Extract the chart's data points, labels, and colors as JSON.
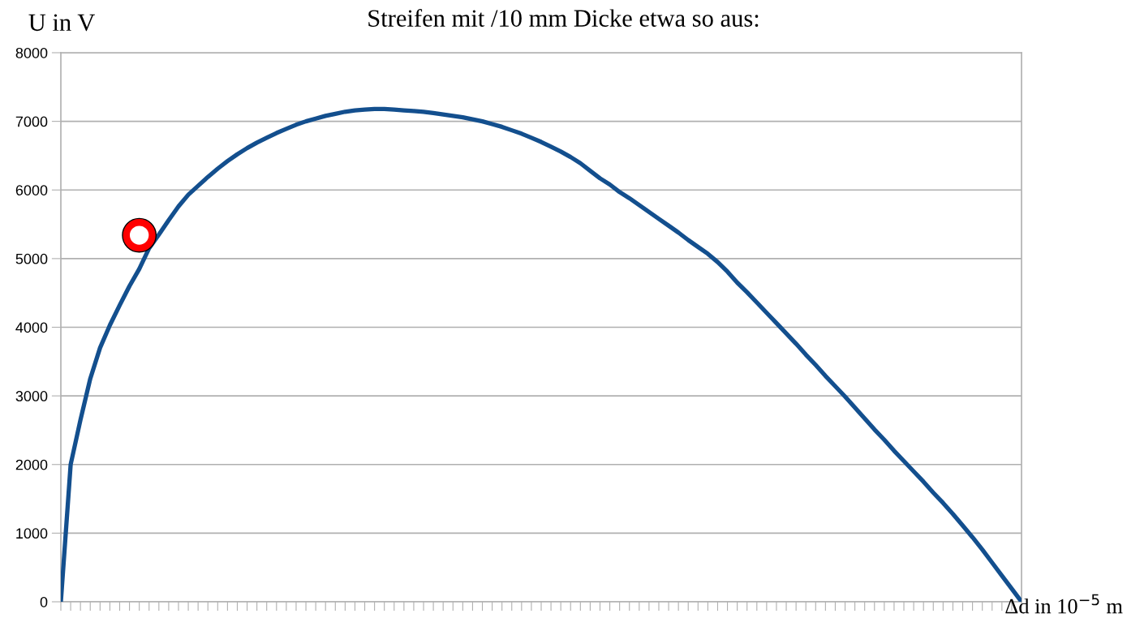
{
  "chart_data": {
    "type": "line",
    "title": "Streifen mit /10 mm Dicke etwa so aus:",
    "ylabel": "U in V",
    "xlabel": "Δd in 10$^{−5}$ m",
    "categories": [
      null,
      null,
      null,
      null,
      null,
      null,
      null,
      null,
      null,
      null,
      null,
      null,
      null,
      null,
      null,
      null,
      null,
      null,
      null,
      null,
      null,
      null,
      null,
      null,
      null,
      null,
      null,
      null,
      null,
      null,
      null,
      null,
      null,
      null,
      null,
      null,
      null,
      null,
      null,
      null,
      null,
      null,
      null,
      null,
      null,
      null,
      null,
      null,
      null,
      null,
      null,
      null,
      null,
      null,
      null,
      null,
      null,
      null,
      null,
      null,
      null,
      null,
      null,
      null,
      null,
      null,
      null,
      null,
      null,
      null,
      null,
      null,
      null,
      null,
      null,
      null,
      null,
      null,
      null,
      null,
      null,
      null,
      null,
      null,
      null,
      null,
      null,
      null,
      null,
      null,
      null,
      null,
      null,
      null,
      null,
      null,
      null,
      null,
      null
    ],
    "series": [
      {
        "color": "#134f8e",
        "values": [
          0,
          2000,
          2650,
          3250,
          3700,
          4030,
          4320,
          4600,
          4850,
          5150,
          5350,
          5560,
          5760,
          5930,
          6060,
          6190,
          6310,
          6420,
          6520,
          6610,
          6690,
          6760,
          6830,
          6890,
          6950,
          7000,
          7040,
          7080,
          7110,
          7140,
          7160,
          7170,
          7180,
          7180,
          7170,
          7160,
          7150,
          7140,
          7120,
          7100,
          7080,
          7060,
          7030,
          7000,
          6960,
          6920,
          6870,
          6820,
          6760,
          6700,
          6630,
          6560,
          6480,
          6390,
          6280,
          6170,
          6080,
          5970,
          5880,
          5780,
          5680,
          5580,
          5480,
          5380,
          5270,
          5170,
          5070,
          4950,
          4810,
          4650,
          4510,
          4360,
          4210,
          4060,
          3910,
          3760,
          3600,
          3450,
          3290,
          3140,
          2990,
          2830,
          2670,
          2510,
          2360,
          2200,
          2050,
          1900,
          1750,
          1590,
          1440,
          1280,
          1110,
          940,
          760,
          570,
          380,
          190,
          0
        ]
      },
      {
        "type": "scatter",
        "color": "#ff0000",
        "values": [
          null,
          null,
          null,
          null,
          null,
          null,
          null,
          null,
          5340,
          null,
          null,
          null,
          null,
          null,
          null,
          null,
          null,
          null,
          null,
          null,
          null,
          null,
          null,
          null,
          null,
          null,
          null,
          null,
          null,
          null,
          null,
          null,
          null,
          null,
          null,
          null,
          null,
          null,
          null,
          null,
          null,
          null,
          null,
          null,
          null,
          null,
          null,
          null,
          null,
          null,
          null,
          null,
          null,
          null,
          null,
          null,
          null,
          null,
          null,
          null,
          null,
          null,
          null,
          null,
          null,
          null,
          null,
          null,
          null,
          null,
          null,
          null,
          null,
          null,
          null,
          null,
          null,
          null,
          null,
          null,
          null,
          null,
          null,
          null,
          null,
          null,
          null,
          null,
          null,
          null,
          null,
          null,
          null,
          null,
          null,
          null,
          null,
          null,
          null
        ],
        "marker": "circle"
      }
    ],
    "ylim": [
      0,
      8000
    ],
    "yticks": [
      0,
      1000,
      2000,
      3000,
      4000,
      5000,
      6000,
      7000,
      8000
    ],
    "grid": "y",
    "tick_labels": "y"
  }
}
